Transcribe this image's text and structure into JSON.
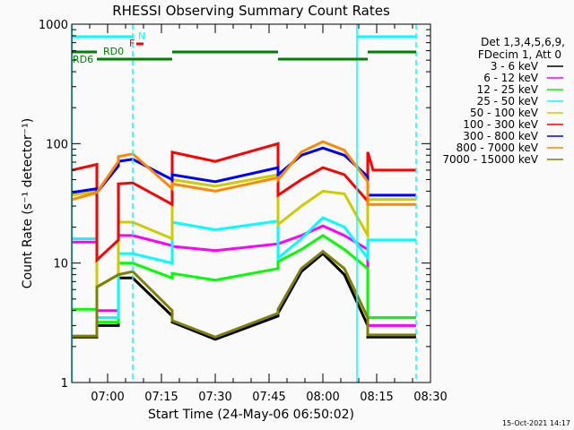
{
  "chart_data": {
    "type": "line",
    "title": "RHESSI Observing Summary Count Rates",
    "xlabel": "Start Time (24-May-06 06:50:02)",
    "ylabel": "Count Rate (s⁻¹ detector⁻¹)",
    "xlim": [
      "06:50",
      "08:30"
    ],
    "ylim": [
      1,
      1000
    ],
    "yscale": "log",
    "x_ticks": [
      "07:00",
      "07:15",
      "07:30",
      "07:45",
      "08:00",
      "08:15",
      "08:30"
    ],
    "y_ticks": [
      "1",
      "10",
      "100",
      "1000"
    ],
    "grid": false,
    "legend_placement": "right",
    "legend_header": [
      "Det 1,3,4,5,6,9,",
      "FDecim 1, Att 0"
    ],
    "footer": "15-Oct-2021 14:17",
    "series": [
      {
        "name": "3 - 6 keV",
        "color": "#000000",
        "points": [
          [
            "06:50",
            2.4
          ],
          [
            "06:57",
            2.4
          ],
          [
            "06:57",
            3.0
          ],
          [
            "07:03",
            3.0
          ],
          [
            "07:03",
            7.5
          ],
          [
            "07:07",
            7.5
          ],
          [
            "07:18",
            3.6
          ],
          [
            "07:18",
            3.2
          ],
          [
            "07:30",
            2.3
          ],
          [
            "07:47:30",
            3.6
          ],
          [
            "07:47:30",
            3.8
          ],
          [
            "07:54",
            8.5
          ],
          [
            "08:00",
            12
          ],
          [
            "08:06",
            8
          ],
          [
            "08:12:30",
            3.0
          ],
          [
            "08:12:30",
            2.4
          ],
          [
            "08:26",
            2.4
          ]
        ]
      },
      {
        "name": "6 - 12 keV",
        "color": "#ff00ff",
        "points": [
          [
            "06:50",
            15
          ],
          [
            "06:57",
            15
          ],
          [
            "06:57",
            4
          ],
          [
            "07:03",
            4
          ],
          [
            "07:03",
            17
          ],
          [
            "07:07",
            17
          ],
          [
            "07:18",
            14
          ],
          [
            "07:18",
            13.8
          ],
          [
            "07:30",
            12.7
          ],
          [
            "07:47:30",
            14.5
          ],
          [
            "07:47:30",
            14.5
          ],
          [
            "07:54",
            17
          ],
          [
            "08:00",
            20.5
          ],
          [
            "08:06",
            17
          ],
          [
            "08:12:30",
            13
          ],
          [
            "08:12:30",
            3
          ],
          [
            "08:26",
            3
          ]
        ]
      },
      {
        "name": "12 - 25 keV",
        "color": "#00ff00",
        "points": [
          [
            "06:50",
            4.1
          ],
          [
            "06:57",
            4.1
          ],
          [
            "06:57",
            3.2
          ],
          [
            "07:03",
            3.2
          ],
          [
            "07:03",
            10
          ],
          [
            "07:07",
            10
          ],
          [
            "07:18",
            7.5
          ],
          [
            "07:18",
            8.2
          ],
          [
            "07:30",
            7.2
          ],
          [
            "07:47:30",
            9
          ],
          [
            "07:47:30",
            10.3
          ],
          [
            "07:54",
            13
          ],
          [
            "08:00",
            17
          ],
          [
            "08:06",
            13
          ],
          [
            "08:12:30",
            9
          ],
          [
            "08:12:30",
            3.5
          ],
          [
            "08:26",
            3.5
          ]
        ]
      },
      {
        "name": "25 - 50 keV",
        "color": "#00ffff",
        "points": [
          [
            "06:50",
            16
          ],
          [
            "06:57",
            16
          ],
          [
            "06:57",
            3.5
          ],
          [
            "07:03",
            3.5
          ],
          [
            "07:03",
            12
          ],
          [
            "07:07",
            12
          ],
          [
            "07:18",
            10
          ],
          [
            "07:18",
            22
          ],
          [
            "07:30",
            19
          ],
          [
            "07:47:30",
            22.5
          ],
          [
            "07:47:30",
            11
          ],
          [
            "07:54",
            16
          ],
          [
            "08:00",
            24
          ],
          [
            "08:06",
            20
          ],
          [
            "08:12:30",
            11
          ],
          [
            "08:12:30",
            15.6
          ],
          [
            "08:26",
            15.6
          ]
        ]
      },
      {
        "name": "50 - 100 keV",
        "color": "#cccc00",
        "points": [
          [
            "06:50",
            37
          ],
          [
            "06:57",
            40
          ],
          [
            "06:57",
            6.3
          ],
          [
            "07:03",
            8
          ],
          [
            "07:03",
            22
          ],
          [
            "07:07",
            22
          ],
          [
            "07:18",
            16
          ],
          [
            "07:18",
            50
          ],
          [
            "07:30",
            44
          ],
          [
            "07:47:30",
            55
          ],
          [
            "07:47:30",
            21
          ],
          [
            "07:54",
            30
          ],
          [
            "08:00",
            40
          ],
          [
            "08:06",
            38
          ],
          [
            "08:12:30",
            17
          ],
          [
            "08:12:30",
            34
          ],
          [
            "08:26",
            34
          ]
        ]
      },
      {
        "name": "100 - 300 keV",
        "color": "#ff0000",
        "points": [
          [
            "06:50",
            60
          ],
          [
            "06:57",
            67
          ],
          [
            "06:57",
            10.6
          ],
          [
            "07:03",
            15.6
          ],
          [
            "07:03",
            46
          ],
          [
            "07:07",
            47
          ],
          [
            "07:18",
            31
          ],
          [
            "07:18",
            84.8
          ],
          [
            "07:30",
            71
          ],
          [
            "07:47:30",
            100
          ],
          [
            "07:47:30",
            37
          ],
          [
            "07:54",
            50
          ],
          [
            "08:00",
            63
          ],
          [
            "08:06",
            55
          ],
          [
            "08:12:30",
            33
          ],
          [
            "08:12:30",
            85
          ],
          [
            "08:14",
            60
          ],
          [
            "08:26",
            60
          ]
        ]
      },
      {
        "name": "300 - 800 keV",
        "color": "#0000ff",
        "points": [
          [
            "06:50",
            39
          ],
          [
            "06:57",
            42
          ],
          [
            "06:57",
            39
          ],
          [
            "07:03",
            65
          ],
          [
            "07:03",
            71
          ],
          [
            "07:07",
            74
          ],
          [
            "07:18",
            50
          ],
          [
            "07:18",
            55
          ],
          [
            "07:30",
            48
          ],
          [
            "07:47:30",
            63
          ],
          [
            "07:47:30",
            55
          ],
          [
            "07:54",
            80
          ],
          [
            "08:00",
            92
          ],
          [
            "08:06",
            80
          ],
          [
            "08:12:30",
            53
          ],
          [
            "08:12:30",
            37
          ],
          [
            "08:26",
            37
          ]
        ]
      },
      {
        "name": "800 - 7000 keV",
        "color": "#ff8800",
        "points": [
          [
            "06:50",
            34
          ],
          [
            "06:57",
            39
          ],
          [
            "06:57",
            39
          ],
          [
            "07:03",
            71
          ],
          [
            "07:03",
            78
          ],
          [
            "07:07",
            82
          ],
          [
            "07:18",
            42
          ],
          [
            "07:18",
            46
          ],
          [
            "07:30",
            40
          ],
          [
            "07:47:30",
            52
          ],
          [
            "07:47:30",
            50
          ],
          [
            "07:54",
            85
          ],
          [
            "08:00",
            104
          ],
          [
            "08:06",
            88
          ],
          [
            "08:12:30",
            48
          ],
          [
            "08:12:30",
            31
          ],
          [
            "08:26",
            31
          ]
        ]
      },
      {
        "name": "7000 - 15000 keV",
        "color": "#808000",
        "points": [
          [
            "06:50",
            2.45
          ],
          [
            "06:57",
            2.45
          ],
          [
            "06:57",
            6.3
          ],
          [
            "07:03",
            8
          ],
          [
            "07:03",
            8
          ],
          [
            "07:07",
            8.5
          ],
          [
            "07:18",
            4
          ],
          [
            "07:18",
            3.3
          ],
          [
            "07:30",
            2.4
          ],
          [
            "07:47:30",
            3.8
          ],
          [
            "07:47:30",
            4.1
          ],
          [
            "07:54",
            9
          ],
          [
            "08:00",
            12.5
          ],
          [
            "08:06",
            9
          ],
          [
            "08:12:30",
            3.5
          ],
          [
            "08:12:30",
            2.5
          ],
          [
            "08:26",
            2.5
          ]
        ]
      }
    ],
    "vertical_lines": [
      {
        "time": "06:50:02",
        "style": "solid",
        "color": "#00ffff"
      },
      {
        "time": "07:07",
        "style": "dashed",
        "color": "#00ffff"
      },
      {
        "time": "08:09:30",
        "style": "solid",
        "color": "#00ffff"
      },
      {
        "time": "08:26",
        "style": "dashed",
        "color": "#00ffff"
      }
    ],
    "annotations": {
      "night_label": "N",
      "night_color": "#00ffff",
      "night_bars": [
        [
          "06:50",
          "07:07"
        ],
        [
          "08:09:30",
          "08:26"
        ]
      ],
      "flare_label": "F",
      "flare_color": "#ff0000",
      "flare_bars": [
        [
          "07:08",
          "07:10"
        ]
      ],
      "decimation_color": "#008000",
      "rd0_label": "RD0",
      "rd6_label": "RD6",
      "rd0_bars": [
        [
          "06:50",
          "06:57"
        ],
        [
          "07:18",
          "07:47:30"
        ],
        [
          "08:12:30",
          "08:26"
        ]
      ],
      "rd6_bars": [
        [
          "06:57",
          "07:18"
        ],
        [
          "07:47:30",
          "08:12:30"
        ]
      ]
    }
  }
}
